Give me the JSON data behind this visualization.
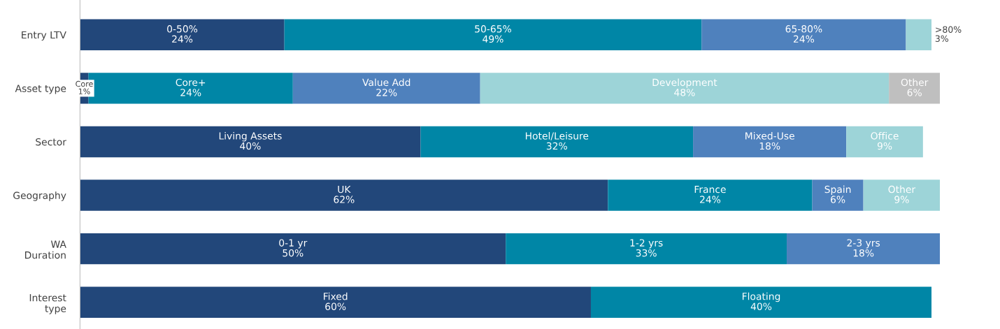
{
  "chart_data": {
    "type": "bar",
    "orientation": "horizontal",
    "stacked": true,
    "categories": [
      "Entry LTV",
      "Asset type",
      "Sector",
      "Geography",
      "WA\nDuration",
      "Interest\ntype"
    ],
    "series": [
      {
        "color": "#22477a",
        "values": [
          24,
          1,
          40,
          62,
          50,
          60
        ],
        "value_labels": [
          "0-50%\n24%",
          "Core\n1%",
          "Living Assets\n40%",
          "UK\n62%",
          "0-1 yr\n50%",
          "Fixed\n60%"
        ]
      },
      {
        "color": "#0086a6",
        "values": [
          49,
          24,
          32,
          24,
          33,
          40
        ],
        "value_labels": [
          "50-65%\n49%",
          "Core+\n24%",
          "Hotel/Leisure\n32%",
          "France\n24%",
          "1-2 yrs\n33%",
          "Floating\n40%"
        ]
      },
      {
        "color": "#4f81bd",
        "values": [
          24,
          22,
          18,
          6,
          18,
          null
        ],
        "value_labels": [
          "65-80%\n24%",
          "Value Add\n22%",
          "Mixed-Use\n18%",
          "Spain\n6%",
          "2-3 yrs\n18%",
          null
        ]
      },
      {
        "color": "#9dd4d8",
        "values": [
          3,
          48,
          9,
          9,
          null,
          null
        ],
        "value_labels": [
          ">80%\n3%",
          "Development\n48%",
          "Office\n9%",
          "Other\n9%",
          null,
          null
        ]
      },
      {
        "color": "#bfbfbf",
        "values": [
          null,
          6,
          null,
          null,
          null,
          null
        ],
        "value_labels": [
          null,
          "Other\n6%",
          null,
          null,
          null,
          null
        ]
      }
    ],
    "grid": false,
    "tick_labels": "y"
  }
}
